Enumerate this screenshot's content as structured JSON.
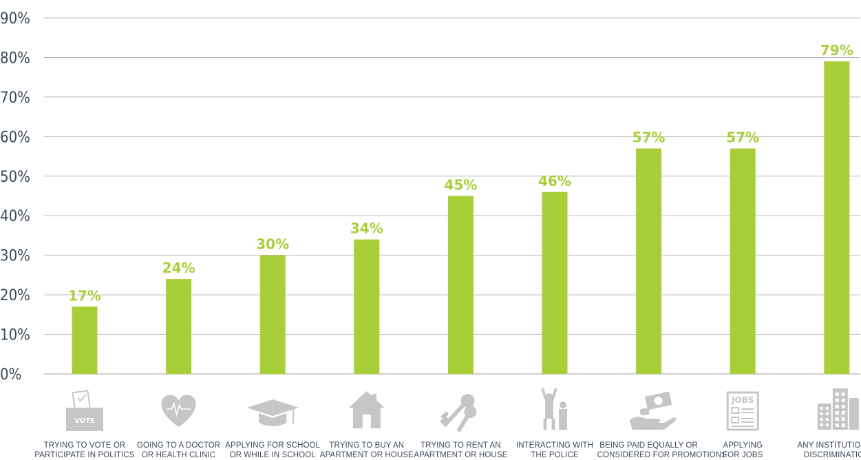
{
  "chart_data": {
    "type": "bar",
    "categories": [
      [
        "TRYING TO VOTE OR",
        "PARTICIPATE IN POLITICS"
      ],
      [
        "GOING TO A DOCTOR",
        "OR HEALTH CLINIC"
      ],
      [
        "APPLYING FOR SCHOOL",
        "OR WHILE IN SCHOOL"
      ],
      [
        "TRYING TO BUY AN",
        "APARTMENT OR HOUSE"
      ],
      [
        "TRYING TO RENT AN",
        "APARTMENT OR HOUSE"
      ],
      [
        "INTERACTING WITH",
        "THE POLICE"
      ],
      [
        "BEING PAID EQUALLY OR",
        "CONSIDERED FOR PROMOTIONS"
      ],
      [
        "APPLYING",
        "FOR JOBS"
      ],
      [
        "ANY INSTITUTIONAL",
        "DISCRIMINATION"
      ]
    ],
    "values": [
      17,
      24,
      30,
      34,
      45,
      46,
      57,
      57,
      79
    ],
    "data_labels": [
      "17%",
      "24%",
      "30%",
      "34%",
      "45%",
      "46%",
      "57%",
      "57%",
      "79%"
    ],
    "icons": [
      "ballot-box-icon",
      "heart-pulse-icon",
      "graduation-cap-icon",
      "house-icon",
      "keys-icon",
      "police-arrest-icon",
      "money-hand-icon",
      "jobs-newspaper-icon",
      "city-buildings-icon"
    ],
    "icon_labels": {
      "vote": "VOTE",
      "jobs": "JOBS"
    },
    "yticks": [
      "0%",
      "10%",
      "20%",
      "30%",
      "40%",
      "50%",
      "60%",
      "70%",
      "80%",
      "90%"
    ],
    "ylim": [
      0,
      90
    ],
    "grid": true,
    "colors": {
      "bar": "#a8cf38",
      "label": "#a8cf38",
      "grid": "#b8b8b8",
      "text": "#3d4a5a",
      "icon": "#c4c6c8"
    }
  }
}
